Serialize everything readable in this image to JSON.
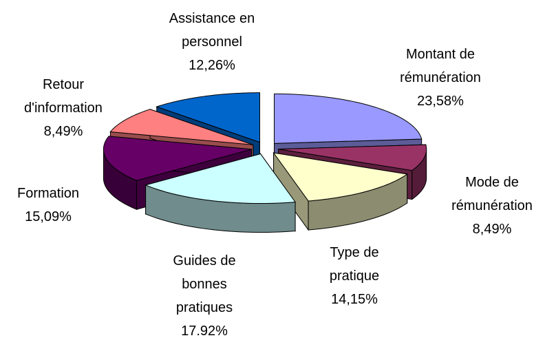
{
  "chart_data": {
    "type": "pie",
    "categories": [
      "Montant de rémunération",
      "Mode de rémunération",
      "Type de pratique",
      "Guides de bonnes pratiques",
      "Formation",
      "Retour d'information",
      "Assistance en personnel"
    ],
    "values": [
      23.58,
      8.49,
      14.15,
      17.92,
      15.09,
      8.49,
      12.26
    ],
    "value_labels": [
      "23,58%",
      "8,49%",
      "14,15%",
      "17.92%",
      "15,09%",
      "8,49%",
      "12,26%"
    ],
    "colors": [
      "#9999ff",
      "#993366",
      "#ffffcc",
      "#ccffff",
      "#660066",
      "#ff8080",
      "#0066cc"
    ]
  }
}
